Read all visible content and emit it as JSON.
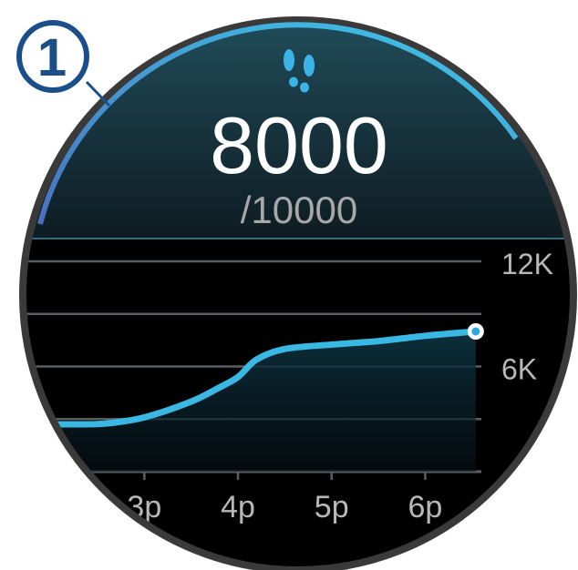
{
  "callout": {
    "label": "1"
  },
  "steps": {
    "icon": "footsteps-icon",
    "count": "8000",
    "goal": "/10000",
    "progress_fraction": 0.8
  },
  "colors": {
    "accent": "#3ec4e8",
    "arc_start": "#4a70bd",
    "arc_end": "#3ec8ea",
    "callout": "#1b4f8a"
  },
  "chart_data": {
    "type": "area",
    "x_unit": "hour (pm)",
    "x": [
      2.3,
      2.6,
      3.0,
      3.5,
      3.8,
      4.0,
      4.2,
      4.5,
      5.0,
      5.5,
      6.0,
      6.54
    ],
    "y": [
      2700,
      2750,
      3100,
      4000,
      4800,
      5400,
      6400,
      7000,
      7250,
      7450,
      7750,
      8000
    ],
    "xlim": [
      1.75,
      6.6
    ],
    "ylim": [
      0,
      12000
    ],
    "y_ticks": [
      {
        "value": 12000,
        "label": "12K"
      },
      {
        "value": 6000,
        "label": "6K"
      }
    ],
    "gridlines": [
      0,
      3000,
      6000,
      9000,
      12000
    ],
    "x_ticks": [
      {
        "value": 3,
        "label": "3p"
      },
      {
        "value": 4,
        "label": "4p"
      },
      {
        "value": 5,
        "label": "5p"
      },
      {
        "value": 6,
        "label": "6p"
      }
    ],
    "grid": true
  }
}
